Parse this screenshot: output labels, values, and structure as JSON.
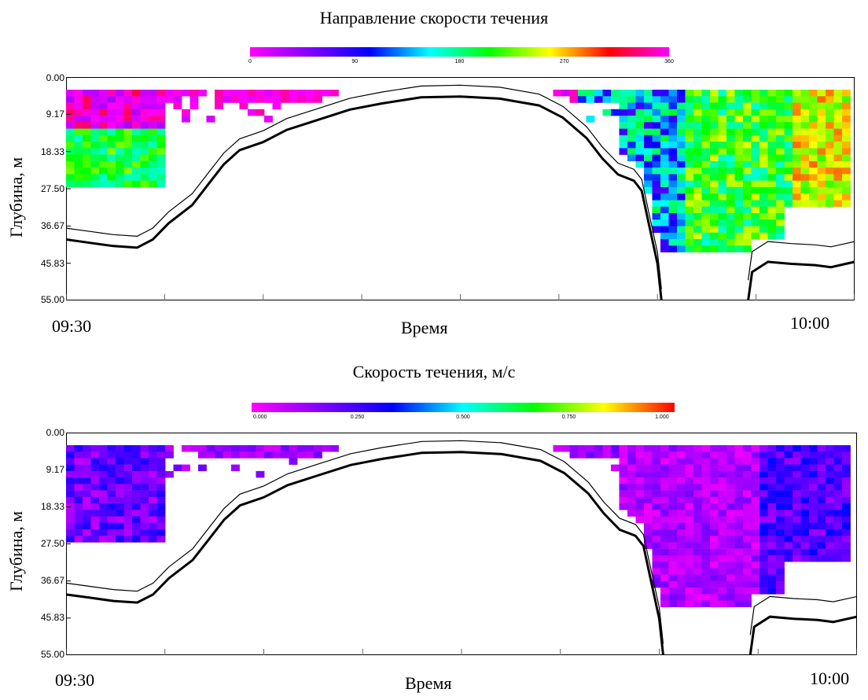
{
  "chart_data": [
    {
      "type": "heatmap",
      "title": "Направление скорости течения",
      "xlabel": "Время",
      "ylabel": "Глубина, м",
      "x_ticks": [
        "09:30",
        "10:00"
      ],
      "y_ticks": [
        "0.00",
        "9.17",
        "18.33",
        "27.50",
        "36.67",
        "45.83",
        "55.00"
      ],
      "ylim": [
        55.0,
        0.0
      ],
      "xlim": [
        "09:30",
        "10:00"
      ],
      "colorbar": {
        "ticks": [
          "0",
          "90",
          "180",
          "270",
          "360"
        ],
        "range": [
          0,
          360
        ],
        "colors": [
          "#ff00ff",
          "#8000ff",
          "#0000ff",
          "#00ffff",
          "#00ff00",
          "#ffff00",
          "#ff0000",
          "#ff00ff"
        ]
      },
      "line_colors": {
        "bottom": "#000000",
        "sidelobe": "#000000"
      }
    },
    {
      "type": "heatmap",
      "title": "Скорость течения, м/с",
      "xlabel": "Время",
      "ylabel": "Глубина, м",
      "x_ticks": [
        "09:30",
        "10:00"
      ],
      "y_ticks": [
        "0.00",
        "9.17",
        "18.33",
        "27.50",
        "36.67",
        "45.83",
        "55.00"
      ],
      "ylim": [
        55.0,
        0.0
      ],
      "xlim": [
        "09:30",
        "10:00"
      ],
      "colorbar": {
        "ticks": [
          "0.000",
          "0.250",
          "0.500",
          "0.750",
          "1.000"
        ],
        "range": [
          0,
          1
        ],
        "colors": [
          "#ff00ff",
          "#8000ff",
          "#0000ff",
          "#00ffff",
          "#00ff00",
          "#ffff00",
          "#ff0000"
        ]
      },
      "line_colors": {
        "bottom": "#000000",
        "sidelobe": "#000000"
      }
    }
  ]
}
